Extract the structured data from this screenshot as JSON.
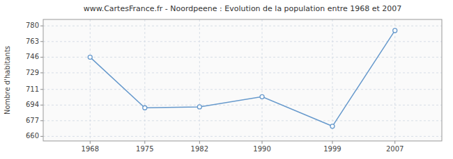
{
  "chart_data": {
    "type": "line",
    "title": "www.CartesFrance.fr - Noordpeene : Evolution de la population entre 1968 et 2007",
    "ylabel": "Nombre d'habitants",
    "x": [
      1968,
      1975,
      1982,
      1990,
      1999,
      2007
    ],
    "values": [
      746,
      691,
      692,
      703,
      671,
      775
    ],
    "color": "#6699cc",
    "marker": "circle",
    "grid": true,
    "xlim": [
      1962,
      2013
    ],
    "xticks": [
      1968,
      1975,
      1982,
      1990,
      1999,
      2007
    ],
    "ylim": [
      655,
      787
    ],
    "yticks": [
      660,
      677,
      694,
      711,
      729,
      746,
      763,
      780
    ]
  }
}
